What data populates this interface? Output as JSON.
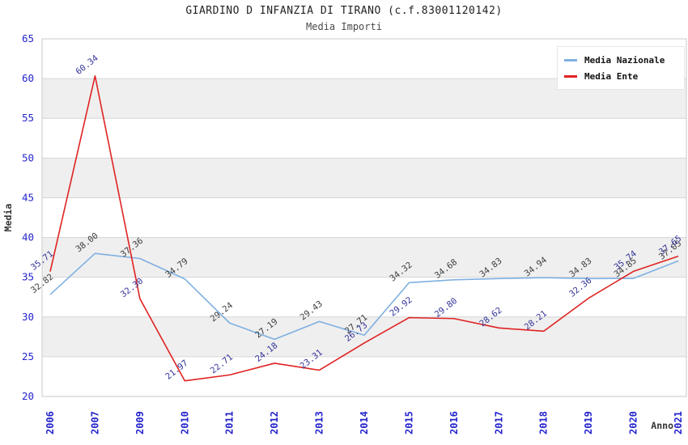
{
  "chart_data": {
    "type": "line",
    "title": "GIARDINO D INFANZIA DI TIRANO (c.f.83001120142)",
    "subtitle": "Media Importi",
    "xlabel": "Anno",
    "ylabel": "Media",
    "categories": [
      "2006",
      "2007",
      "2009",
      "2010",
      "2011",
      "2012",
      "2013",
      "2014",
      "2015",
      "2016",
      "2017",
      "2018",
      "2019",
      "2020",
      "2021"
    ],
    "series": [
      {
        "name": "Media Nazionale",
        "color": "#7eb0e2",
        "label_color": "#3d3d3d",
        "values": [
          32.82,
          38.0,
          37.36,
          34.79,
          29.24,
          27.19,
          29.43,
          27.71,
          34.32,
          34.68,
          34.83,
          34.94,
          34.83,
          34.85,
          37.05
        ]
      },
      {
        "name": "Media Ente",
        "color": "#e02222",
        "label_color": "#333399",
        "values": [
          35.71,
          60.34,
          32.3,
          21.97,
          22.71,
          24.18,
          23.31,
          26.73,
          29.92,
          29.8,
          28.62,
          28.21,
          32.36,
          35.74,
          37.65
        ]
      }
    ],
    "ylim": [
      20,
      65
    ],
    "y_ticks": [
      65,
      60,
      55,
      50,
      45,
      40,
      35,
      30,
      25,
      20
    ],
    "grid": "horizontal-bands",
    "legend_position": "top-right",
    "band_colors": [
      "#ffffff",
      "#efefef"
    ],
    "gridline_color": "#d6d6d6",
    "frame_color": "#c9c9c9",
    "tick_label_color": "#2424cc",
    "axis_title_color": "#333333"
  }
}
